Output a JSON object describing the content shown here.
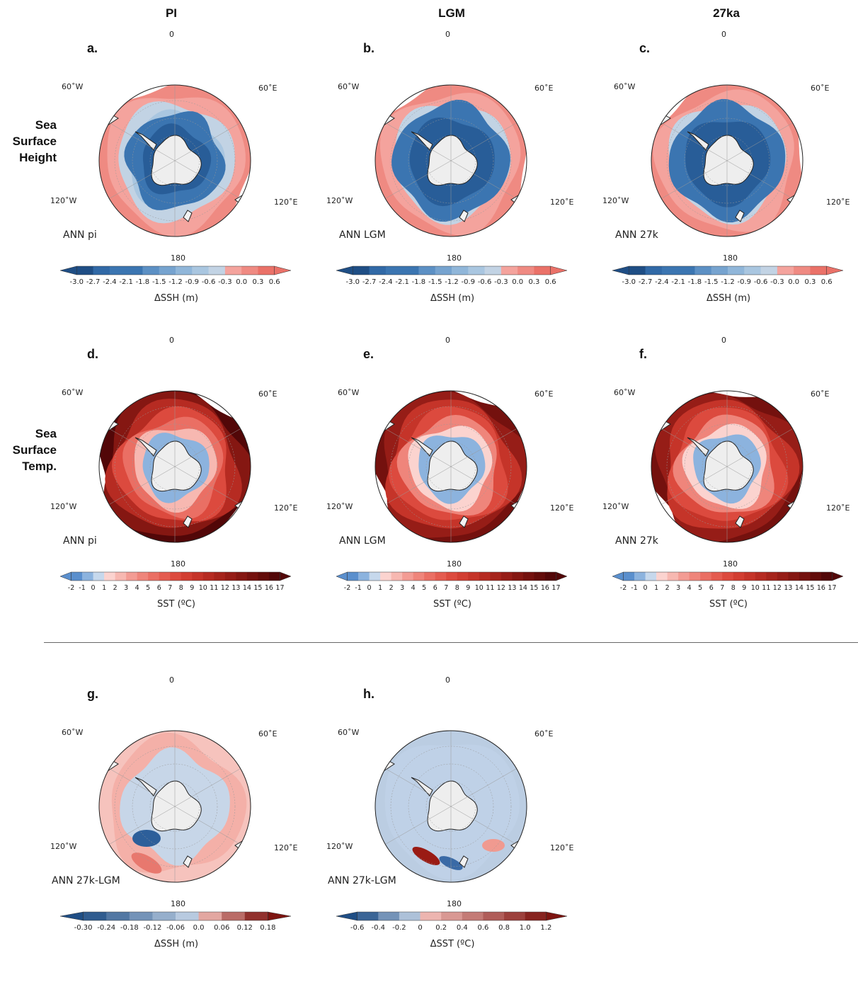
{
  "column_headers": [
    "PI",
    "LGM",
    "27ka"
  ],
  "row_labels": [
    [
      "Sea",
      "Surface",
      "Height"
    ],
    [
      "Sea",
      "Surface",
      "Temp."
    ]
  ],
  "longitude_labels": {
    "top": "0",
    "left_upper": "60˚W",
    "right_upper": "60˚E",
    "left_lower": "120˚W",
    "right_lower": "120˚E",
    "bottom": "180"
  },
  "colors": {
    "ssh_colors": [
      "#1f4e85",
      "#285d98",
      "#3169a6",
      "#3b75b1",
      "#4a82bb",
      "#5c90c4",
      "#76a3cf",
      "#90b6d9",
      "#a9c6e0",
      "#c2d3e4",
      "#f4a39d",
      "#ef8a82",
      "#ea7168"
    ],
    "sst_colors": [
      "#5a8fcd",
      "#8cb3de",
      "#c6d8ec",
      "#fbd3cf",
      "#f7b8b1",
      "#f39c94",
      "#ef857b",
      "#ea6f64",
      "#e45c50",
      "#dc4a3e",
      "#d23e32",
      "#c53429",
      "#b62b22",
      "#a6241c",
      "#961d17",
      "#851712",
      "#74110e",
      "#630c0a",
      "#520708"
    ],
    "land": "#f2f2f2",
    "ice": "#eeeeee"
  },
  "chart_data": [
    {
      "type": "heatmap",
      "panel": "a.",
      "label": "ANN  pi",
      "variable": "ΔSSH (m)",
      "colorbar_ticks": [
        "-3.0",
        "-2.7",
        "-2.4",
        "-2.1",
        "-1.8",
        "-1.5",
        "-1.2",
        "-0.9",
        "-0.6",
        "-0.3",
        "0.0",
        "0.3",
        "0.6"
      ],
      "colorbar_range": [
        -3.0,
        0.6
      ],
      "bands": [
        -0.9,
        -0.6,
        -0.3,
        0.0,
        0.3
      ]
    },
    {
      "type": "heatmap",
      "panel": "b.",
      "label": "ANN  LGM",
      "variable": "ΔSSH (m)",
      "colorbar_ticks": [
        "-3.0",
        "-2.7",
        "-2.4",
        "-2.1",
        "-1.8",
        "-1.5",
        "-1.2",
        "-0.9",
        "-0.6",
        "-0.3",
        "0.0",
        "0.3",
        "0.6"
      ],
      "colorbar_range": [
        -3.0,
        0.6
      ],
      "bands": [
        -1.5,
        -0.9,
        -0.3,
        0.0,
        0.3
      ]
    },
    {
      "type": "heatmap",
      "panel": "c.",
      "label": "ANN  27k",
      "variable": "ΔSSH (m)",
      "colorbar_ticks": [
        "-3.0",
        "-2.7",
        "-2.4",
        "-2.1",
        "-1.8",
        "-1.5",
        "-1.2",
        "-0.9",
        "-0.6",
        "-0.3",
        "0.0",
        "0.3",
        "0.6"
      ],
      "colorbar_range": [
        -3.0,
        0.6
      ],
      "bands": [
        -1.5,
        -0.9,
        -0.3,
        0.0,
        0.3
      ]
    },
    {
      "type": "heatmap",
      "panel": "d.",
      "label": "ANN  pi",
      "variable": "SST (ºC)",
      "colorbar_ticks": [
        "-2",
        "-1",
        "0",
        "1",
        "2",
        "3",
        "4",
        "5",
        "6",
        "7",
        "8",
        "9",
        "10",
        "11",
        "12",
        "13",
        "14",
        "15",
        "16",
        "17"
      ],
      "colorbar_range": [
        -2,
        17
      ],
      "bands": [
        -1,
        2,
        5,
        8,
        11,
        14,
        17
      ]
    },
    {
      "type": "heatmap",
      "panel": "e.",
      "label": "ANN  LGM",
      "variable": "SST (ºC)",
      "colorbar_ticks": [
        "-2",
        "-1",
        "0",
        "1",
        "2",
        "3",
        "4",
        "5",
        "6",
        "7",
        "8",
        "9",
        "10",
        "11",
        "12",
        "13",
        "14",
        "15",
        "16",
        "17"
      ],
      "colorbar_range": [
        -2,
        17
      ],
      "bands": [
        -1,
        1,
        4,
        7,
        10,
        13,
        15
      ]
    },
    {
      "type": "heatmap",
      "panel": "f.",
      "label": "ANN  27k",
      "variable": "SST (ºC)",
      "colorbar_ticks": [
        "-2",
        "-1",
        "0",
        "1",
        "2",
        "3",
        "4",
        "5",
        "6",
        "7",
        "8",
        "9",
        "10",
        "11",
        "12",
        "13",
        "14",
        "15",
        "16",
        "17"
      ],
      "colorbar_range": [
        -2,
        17
      ],
      "bands": [
        -1,
        1,
        4,
        7,
        10,
        13,
        15
      ]
    },
    {
      "type": "heatmap",
      "panel": "g.",
      "label": "ANN  27k-LGM",
      "variable": "ΔSSH (m)",
      "colorbar_ticks": [
        "-0.30",
        "-0.24",
        "-0.18",
        "-0.12",
        "-0.06",
        "0.0",
        "0.06",
        "0.12",
        "0.18"
      ],
      "colorbar_range": [
        -0.3,
        0.18
      ],
      "bands": [
        0.0,
        -0.03,
        0.03,
        0.06
      ]
    },
    {
      "type": "heatmap",
      "panel": "h.",
      "label": "ANN  27k-LGM",
      "variable": "ΔSST (ºC)",
      "colorbar_ticks": [
        "-0.6",
        "-0.4",
        "-0.2",
        "0",
        "0.2",
        "0.4",
        "0.6",
        "0.8",
        "1.0",
        "1.2"
      ],
      "colorbar_range": [
        -0.6,
        1.2
      ],
      "bands": [
        -0.1,
        -0.2,
        0.0,
        -0.1
      ]
    }
  ]
}
